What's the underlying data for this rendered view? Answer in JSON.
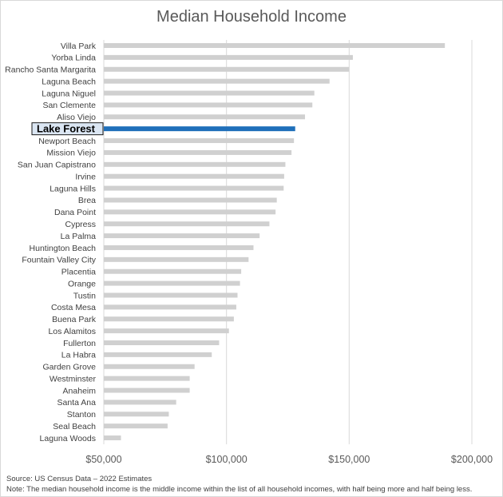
{
  "chart_data": {
    "type": "bar",
    "orientation": "horizontal",
    "title": "Median Household Income",
    "categories": [
      "Villa Park",
      "Yorba Linda",
      "Rancho Santa Margarita",
      "Laguna Beach",
      "Laguna Niguel",
      "San Clemente",
      "Aliso Viejo",
      "Lake Forest",
      "Newport Beach",
      "Mission Viejo",
      "San Juan Capistrano",
      "Irvine",
      "Laguna Hills",
      "Brea",
      "Dana Point",
      "Cypress",
      "La Palma",
      "Huntington Beach",
      "Fountain Valley City",
      "Placentia",
      "Orange",
      "Tustin",
      "Costa Mesa",
      "Buena Park",
      "Los Alamitos",
      "Fullerton",
      "La Habra",
      "Garden Grove",
      "Westminster",
      "Anaheim",
      "Santa Ana",
      "Stanton",
      "Seal Beach",
      "Laguna Woods"
    ],
    "values": [
      189000,
      151500,
      150000,
      142000,
      135800,
      135000,
      132000,
      128000,
      127500,
      126500,
      124000,
      123500,
      123300,
      120500,
      120000,
      117500,
      113500,
      111000,
      109000,
      106000,
      105500,
      104500,
      104000,
      103000,
      101000,
      97000,
      94000,
      87000,
      85000,
      85000,
      79500,
      76500,
      76000,
      57000
    ],
    "highlight": "Lake Forest",
    "xlim": [
      50000,
      200000
    ],
    "xticks": [
      50000,
      100000,
      150000,
      200000
    ],
    "xtick_labels": [
      "$50,000",
      "$100,000",
      "$150,000",
      "$200,000"
    ],
    "colors": {
      "bar": "#d0d0d0",
      "highlight": "#1f6fba",
      "grid": "#d9d9d9"
    },
    "xlabel": "",
    "ylabel": ""
  },
  "source": "Source: US Census Data – 2022 Estimates",
  "note": "Note: The median household income is the middle income within the list of all household incomes, with half being more and half being less."
}
